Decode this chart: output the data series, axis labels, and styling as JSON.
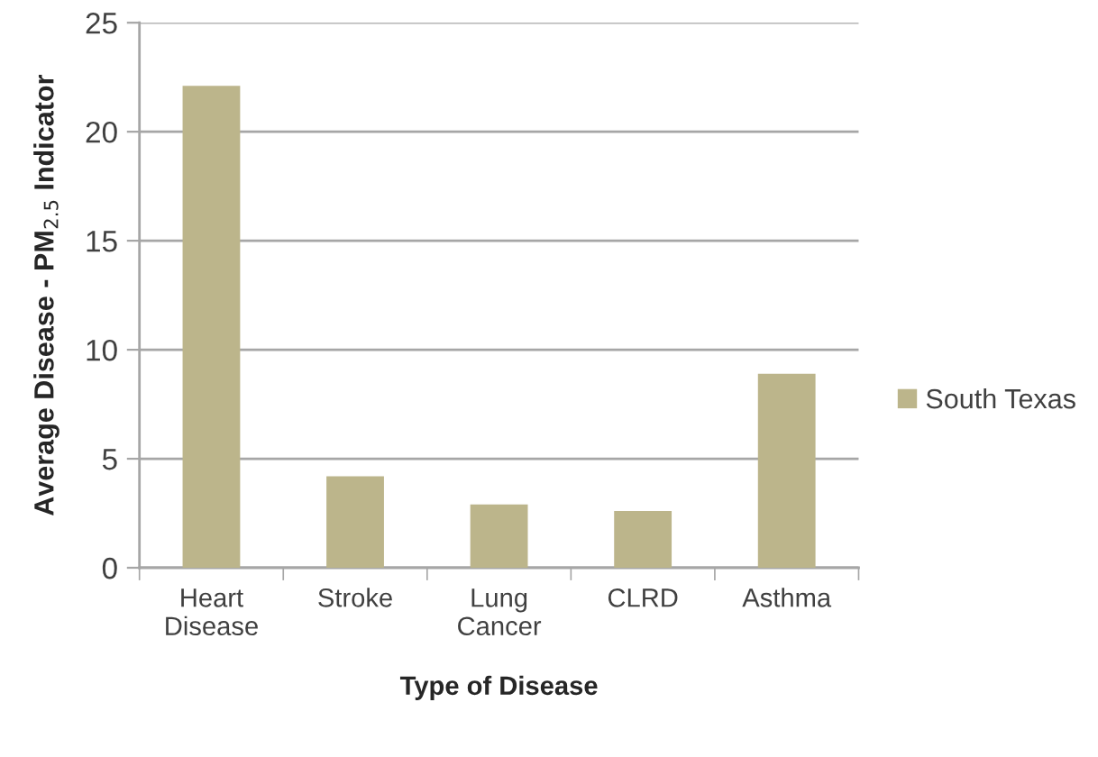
{
  "chart_data": {
    "type": "bar",
    "categories": [
      "Heart\nDisease",
      "Stroke",
      "Lung\nCancer",
      "CLRD",
      "Asthma"
    ],
    "series": [
      {
        "name": "South Texas",
        "color": "#bcb58b",
        "values": [
          22.1,
          4.2,
          2.9,
          2.6,
          8.9
        ]
      }
    ],
    "xlabel": "Type of Disease",
    "ylabel": "Average Disease - PM$_{2.5}$ Indicator",
    "ylim": [
      0,
      25
    ],
    "yticks": [
      0,
      5,
      10,
      15,
      20,
      25
    ],
    "grid": "y",
    "legend": "right"
  }
}
